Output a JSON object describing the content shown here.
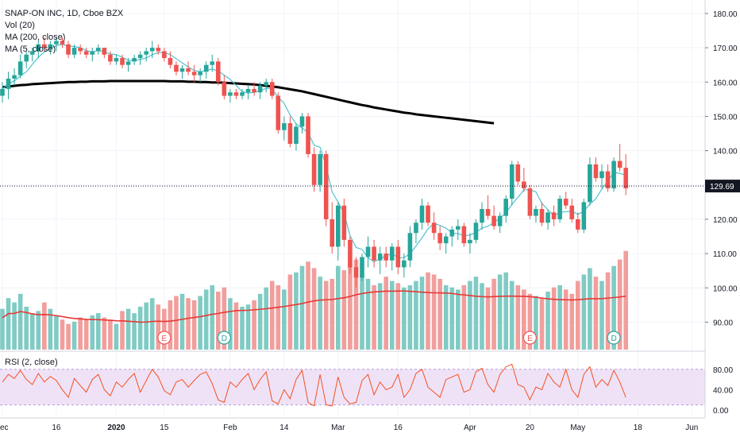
{
  "chart_data": {
    "type": "candlestick",
    "header": {
      "title": "SNAP-ON INC, 1D, Cboe BZX",
      "legend": [
        "Vol (20)",
        "MA (200, close)",
        "MA (5, close)"
      ]
    },
    "price_axis": {
      "ticks": [
        "180.00",
        "170.00",
        "160.00",
        "150.00",
        "140.00",
        "130.00",
        "120.00",
        "110.00",
        "100.00",
        "90.00"
      ],
      "ylim": [
        82,
        183
      ]
    },
    "volume_axis": {
      "ylim": [
        0,
        250
      ]
    },
    "last_price": "129.69",
    "x_ticks": [
      {
        "label": "ec",
        "idx": 0
      },
      {
        "label": "16",
        "idx": 9
      },
      {
        "label": "2020",
        "idx": 19
      },
      {
        "label": "15",
        "idx": 27
      },
      {
        "label": "Feb",
        "idx": 38
      },
      {
        "label": "14",
        "idx": 47
      },
      {
        "label": "Mar",
        "idx": 56
      },
      {
        "label": "16",
        "idx": 66
      },
      {
        "label": "Apr",
        "idx": 78
      },
      {
        "label": "20",
        "idx": 88
      },
      {
        "label": "May",
        "idx": 96
      },
      {
        "label": "18",
        "idx": 106
      },
      {
        "label": "Jun",
        "idx": 115
      }
    ],
    "candles": [
      [
        156,
        160,
        154,
        158
      ],
      [
        158,
        163,
        155,
        161
      ],
      [
        161,
        164,
        159,
        162
      ],
      [
        162,
        168,
        161,
        166
      ],
      [
        166,
        169,
        164,
        168
      ],
      [
        168,
        170,
        166,
        169
      ],
      [
        169,
        172,
        167,
        171
      ],
      [
        171,
        173,
        169,
        170
      ],
      [
        170,
        172,
        168,
        171
      ],
      [
        171,
        173,
        169,
        172
      ],
      [
        172,
        173,
        170,
        171
      ],
      [
        171,
        172,
        167,
        168
      ],
      [
        168,
        171,
        167,
        170
      ],
      [
        170,
        171,
        168,
        169
      ],
      [
        169,
        170,
        167,
        168
      ],
      [
        168,
        170,
        166,
        169
      ],
      [
        169,
        171,
        168,
        170
      ],
      [
        170,
        170,
        167,
        168
      ],
      [
        168,
        169,
        165,
        166
      ],
      [
        166,
        168,
        165,
        167
      ],
      [
        167,
        168,
        164,
        165
      ],
      [
        165,
        167,
        163,
        166
      ],
      [
        166,
        168,
        165,
        167
      ],
      [
        167,
        169,
        165,
        168
      ],
      [
        168,
        170,
        166,
        169
      ],
      [
        169,
        172,
        167,
        170
      ],
      [
        170,
        171,
        168,
        169
      ],
      [
        169,
        170,
        166,
        167
      ],
      [
        167,
        169,
        164,
        165
      ],
      [
        165,
        166,
        162,
        163
      ],
      [
        163,
        165,
        161,
        164
      ],
      [
        164,
        166,
        162,
        163
      ],
      [
        163,
        165,
        160,
        162
      ],
      [
        162,
        164,
        160,
        163
      ],
      [
        163,
        166,
        161,
        165
      ],
      [
        165,
        168,
        163,
        166
      ],
      [
        166,
        167,
        159,
        160
      ],
      [
        160,
        162,
        155,
        156
      ],
      [
        156,
        158,
        154,
        157
      ],
      [
        157,
        158,
        155,
        156
      ],
      [
        156,
        158,
        155,
        157
      ],
      [
        157,
        159,
        155,
        158
      ],
      [
        158,
        160,
        156,
        157
      ],
      [
        157,
        160,
        155,
        159
      ],
      [
        159,
        161,
        157,
        160
      ],
      [
        160,
        161,
        155,
        156
      ],
      [
        156,
        157,
        145,
        146
      ],
      [
        146,
        150,
        143,
        148
      ],
      [
        148,
        150,
        141,
        142
      ],
      [
        142,
        148,
        140,
        147
      ],
      [
        147,
        151,
        145,
        150
      ],
      [
        150,
        151,
        138,
        139
      ],
      [
        139,
        141,
        128,
        130
      ],
      [
        130,
        140,
        128,
        139
      ],
      [
        139,
        140,
        118,
        120
      ],
      [
        120,
        125,
        110,
        112
      ],
      [
        112,
        125,
        108,
        124
      ],
      [
        124,
        126,
        112,
        114
      ],
      [
        114,
        115,
        104,
        106
      ],
      [
        106,
        109,
        100,
        103
      ],
      [
        103,
        110,
        102,
        109
      ],
      [
        109,
        115,
        106,
        112
      ],
      [
        112,
        114,
        106,
        108
      ],
      [
        108,
        112,
        104,
        110
      ],
      [
        110,
        112,
        106,
        108
      ],
      [
        108,
        113,
        105,
        112
      ],
      [
        112,
        114,
        104,
        106
      ],
      [
        106,
        110,
        103,
        108
      ],
      [
        108,
        118,
        106,
        116
      ],
      [
        116,
        120,
        113,
        119
      ],
      [
        119,
        126,
        117,
        124
      ],
      [
        124,
        125,
        118,
        119
      ],
      [
        119,
        122,
        114,
        116
      ],
      [
        116,
        118,
        111,
        113
      ],
      [
        113,
        116,
        110,
        115
      ],
      [
        115,
        118,
        112,
        117
      ],
      [
        117,
        120,
        114,
        118
      ],
      [
        118,
        119,
        112,
        113
      ],
      [
        113,
        116,
        110,
        114
      ],
      [
        114,
        120,
        113,
        119
      ],
      [
        119,
        125,
        117,
        123
      ],
      [
        123,
        127,
        120,
        121
      ],
      [
        121,
        124,
        117,
        118
      ],
      [
        118,
        122,
        116,
        121
      ],
      [
        121,
        127,
        119,
        126
      ],
      [
        126,
        137,
        124,
        136
      ],
      [
        136,
        137,
        130,
        131
      ],
      [
        131,
        135,
        128,
        129
      ],
      [
        129,
        130,
        120,
        121
      ],
      [
        121,
        124,
        119,
        123
      ],
      [
        123,
        125,
        118,
        119
      ],
      [
        119,
        123,
        117,
        122
      ],
      [
        122,
        124,
        118,
        120
      ],
      [
        120,
        127,
        119,
        126
      ],
      [
        126,
        128,
        123,
        124
      ],
      [
        124,
        126,
        119,
        120
      ],
      [
        120,
        122,
        116,
        117
      ],
      [
        117,
        126,
        116,
        125
      ],
      [
        125,
        138,
        124,
        136
      ],
      [
        136,
        138,
        131,
        132
      ],
      [
        132,
        136,
        129,
        134
      ],
      [
        134,
        136,
        128,
        129
      ],
      [
        129,
        138,
        128,
        137
      ],
      [
        137,
        142,
        134,
        135
      ],
      [
        135,
        139,
        127,
        129
      ]
    ],
    "volumes": [
      95,
      120,
      110,
      130,
      100,
      85,
      90,
      110,
      95,
      80,
      70,
      60,
      65,
      75,
      70,
      80,
      85,
      75,
      70,
      60,
      90,
      95,
      85,
      100,
      110,
      120,
      105,
      95,
      115,
      125,
      130,
      120,
      115,
      125,
      140,
      150,
      135,
      145,
      120,
      110,
      100,
      105,
      115,
      130,
      145,
      160,
      150,
      140,
      175,
      180,
      195,
      205,
      190,
      170,
      160,
      165,
      195,
      185,
      200,
      210,
      175,
      165,
      150,
      155,
      170,
      160,
      155,
      145,
      150,
      160,
      170,
      180,
      175,
      165,
      150,
      145,
      140,
      150,
      160,
      170,
      155,
      145,
      165,
      175,
      180,
      160,
      150,
      140,
      130,
      125,
      120,
      135,
      145,
      150,
      140,
      130,
      160,
      175,
      190,
      170,
      160,
      180,
      195,
      210,
      230
    ],
    "ma200": [
      158.5,
      158.7,
      158.9,
      159.1,
      159.2,
      159.4,
      159.5,
      159.6,
      159.7,
      159.8,
      159.9,
      160.0,
      160.0,
      160.1,
      160.1,
      160.2,
      160.2,
      160.2,
      160.3,
      160.3,
      160.3,
      160.3,
      160.3,
      160.3,
      160.3,
      160.3,
      160.3,
      160.3,
      160.2,
      160.2,
      160.2,
      160.1,
      160.1,
      160.0,
      160.0,
      159.9,
      159.9,
      159.8,
      159.7,
      159.6,
      159.5,
      159.4,
      159.3,
      159.1,
      158.9,
      158.7,
      158.5,
      158.2,
      157.9,
      157.6,
      157.3,
      156.9,
      156.5,
      156.1,
      155.7,
      155.3,
      154.9,
      154.5,
      154.1,
      153.7,
      153.3,
      153.0,
      152.6,
      152.3,
      152.0,
      151.7,
      151.4,
      151.1,
      150.9,
      150.6,
      150.4,
      150.2,
      150.0,
      149.8,
      149.6,
      149.4,
      149.2,
      149.0,
      148.8,
      148.6,
      148.4,
      148.2,
      148.0
    ],
    "ma200_start": 0,
    "rsi": [
      55,
      70,
      62,
      78,
      60,
      50,
      72,
      55,
      66,
      58,
      40,
      25,
      62,
      48,
      35,
      60,
      70,
      40,
      28,
      55,
      45,
      60,
      72,
      35,
      58,
      80,
      65,
      38,
      30,
      55,
      60,
      45,
      58,
      70,
      75,
      52,
      20,
      15,
      55,
      45,
      60,
      72,
      40,
      60,
      75,
      18,
      12,
      40,
      22,
      60,
      78,
      15,
      8,
      70,
      10,
      8,
      65,
      25,
      12,
      15,
      58,
      70,
      30,
      55,
      40,
      45,
      70,
      25,
      40,
      72,
      80,
      45,
      35,
      25,
      60,
      65,
      70,
      35,
      40,
      75,
      82,
      50,
      35,
      70,
      85,
      90,
      50,
      45,
      20,
      45,
      40,
      72,
      55,
      45,
      80,
      40,
      25,
      70,
      85,
      45,
      60,
      48,
      78,
      55,
      25
    ],
    "rsi_label": "RSI (2, close)",
    "rsi_ticks": [
      "80.00",
      "40.00",
      "0.00"
    ],
    "events": [
      {
        "label": "E",
        "idx": 27
      },
      {
        "label": "D",
        "idx": 37
      },
      {
        "label": "E",
        "idx": 88
      },
      {
        "label": "D",
        "idx": 102
      }
    ]
  },
  "colors": {
    "up": "#26a69a",
    "down": "#ef5350",
    "up_vol": "#80cbc4",
    "down_vol": "#f19e9c",
    "ma200": "#000000",
    "ma5": "#4fc3d1",
    "vol_ma": "#e53935",
    "rsi_line": "#f4511e",
    "rsi_band": "#efe2f7",
    "last_price_bg": "#131722"
  }
}
